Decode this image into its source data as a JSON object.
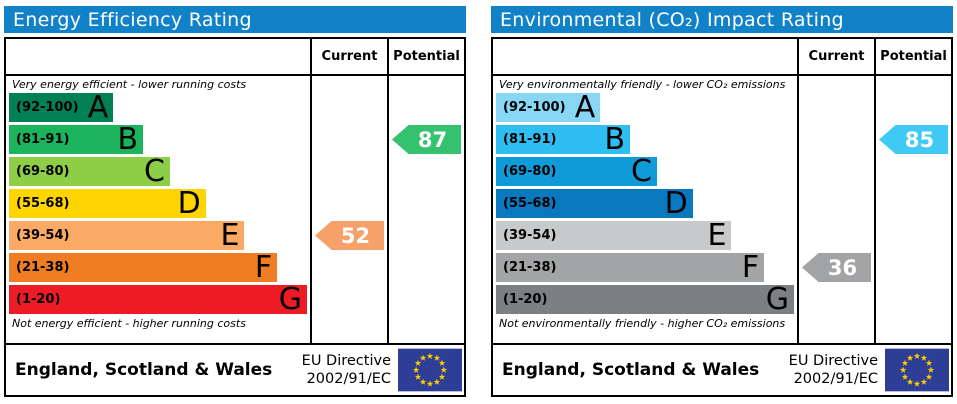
{
  "panels": [
    {
      "title": "Energy Efficiency Rating",
      "header_bg": "#1181c8",
      "columns": {
        "current": "Current",
        "potential": "Potential"
      },
      "top_note": "Very energy efficient - lower running costs",
      "bottom_note": "Not energy efficient - higher running costs",
      "bands": [
        {
          "range": "(92-100)",
          "letter": "A",
          "color": "#008054",
          "width_pct": 35
        },
        {
          "range": "(81-91)",
          "letter": "B",
          "color": "#1bb35c",
          "width_pct": 45
        },
        {
          "range": "(69-80)",
          "letter": "C",
          "color": "#8dce46",
          "width_pct": 54
        },
        {
          "range": "(55-68)",
          "letter": "D",
          "color": "#ffd500",
          "width_pct": 66
        },
        {
          "range": "(39-54)",
          "letter": "E",
          "color": "#fbaa65",
          "width_pct": 79
        },
        {
          "range": "(21-38)",
          "letter": "F",
          "color": "#f07d23",
          "width_pct": 90
        },
        {
          "range": "(1-20)",
          "letter": "G",
          "color": "#ed1c24",
          "width_pct": 100
        }
      ],
      "current": {
        "value": "52",
        "color": "#f8a06a",
        "band_index": 4
      },
      "potential": {
        "value": "87",
        "color": "#35c26e",
        "band_index": 1
      },
      "footer": {
        "region": "England, Scotland & Wales",
        "directive_line1": "EU Directive",
        "directive_line2": "2002/91/EC",
        "flag": {
          "bg": "#2e3d96",
          "star_color": "#ffcc00"
        }
      }
    },
    {
      "title": "Environmental (CO₂) Impact Rating",
      "header_bg": "#1181c8",
      "columns": {
        "current": "Current",
        "potential": "Potential"
      },
      "top_note": "Very environmentally friendly - lower CO₂ emissions",
      "bottom_note": "Not environmentally friendly - higher CO₂ emissions",
      "bands": [
        {
          "range": "(92-100)",
          "letter": "A",
          "color": "#86d6f4",
          "width_pct": 35
        },
        {
          "range": "(81-91)",
          "letter": "B",
          "color": "#2fbef2",
          "width_pct": 45
        },
        {
          "range": "(69-80)",
          "letter": "C",
          "color": "#0f9ad8",
          "width_pct": 54
        },
        {
          "range": "(55-68)",
          "letter": "D",
          "color": "#0a78bf",
          "width_pct": 66
        },
        {
          "range": "(39-54)",
          "letter": "E",
          "color": "#c8c9cb",
          "width_pct": 79
        },
        {
          "range": "(21-38)",
          "letter": "F",
          "color": "#a2a4a6",
          "width_pct": 90
        },
        {
          "range": "(1-20)",
          "letter": "G",
          "color": "#7d8083",
          "width_pct": 100
        }
      ],
      "current": {
        "value": "36",
        "color": "#a2a3a5",
        "band_index": 5
      },
      "potential": {
        "value": "85",
        "color": "#40c9f4",
        "band_index": 1
      },
      "footer": {
        "region": "England, Scotland & Wales",
        "directive_line1": "EU Directive",
        "directive_line2": "2002/91/EC",
        "flag": {
          "bg": "#2e3d96",
          "star_color": "#ffcc00"
        }
      }
    }
  ],
  "chart_data": [
    {
      "type": "bar",
      "title": "Energy Efficiency Rating",
      "categories": [
        "A",
        "B",
        "C",
        "D",
        "E",
        "F",
        "G"
      ],
      "band_ranges": [
        "92-100",
        "81-91",
        "69-80",
        "55-68",
        "39-54",
        "21-38",
        "1-20"
      ],
      "bar_lengths_pct": [
        35,
        45,
        54,
        66,
        79,
        90,
        100
      ],
      "current": 52,
      "current_band": "E",
      "potential": 87,
      "potential_band": "B",
      "xlabel": "",
      "ylabel": "",
      "legend": [
        "Current",
        "Potential"
      ]
    },
    {
      "type": "bar",
      "title": "Environmental (CO₂) Impact Rating",
      "categories": [
        "A",
        "B",
        "C",
        "D",
        "E",
        "F",
        "G"
      ],
      "band_ranges": [
        "92-100",
        "81-91",
        "69-80",
        "55-68",
        "39-54",
        "21-38",
        "1-20"
      ],
      "bar_lengths_pct": [
        35,
        45,
        54,
        66,
        79,
        90,
        100
      ],
      "current": 36,
      "current_band": "F",
      "potential": 85,
      "potential_band": "B",
      "xlabel": "",
      "ylabel": "",
      "legend": [
        "Current",
        "Potential"
      ]
    }
  ]
}
